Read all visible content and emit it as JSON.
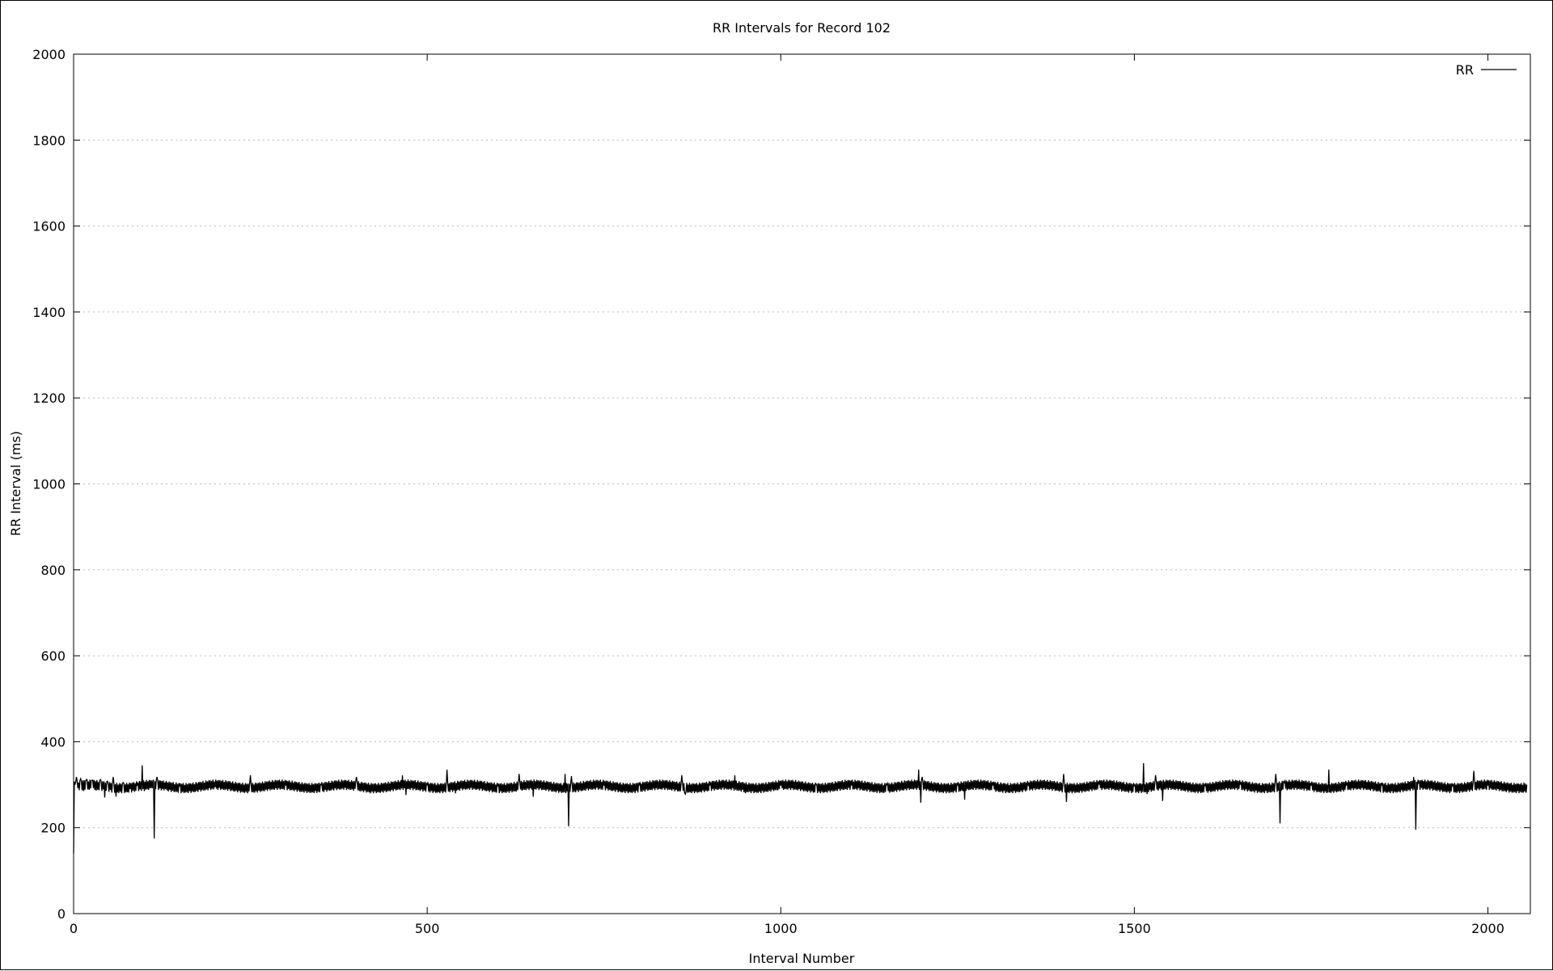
{
  "chart_data": {
    "type": "line",
    "title": "RR Intervals for Record 102",
    "xlabel": "Interval Number",
    "ylabel": "RR Interval (ms)",
    "xlim": [
      0,
      2060
    ],
    "ylim": [
      0,
      2000
    ],
    "xticks": [
      0,
      500,
      1000,
      1500,
      2000
    ],
    "yticks": [
      0,
      200,
      400,
      600,
      800,
      1000,
      1200,
      1400,
      1600,
      1800,
      2000
    ],
    "grid": true,
    "legend_position": "top-right",
    "series": [
      {
        "name": "RR",
        "color": "#000000",
        "baseline": 296,
        "oscillation_amplitude": 12,
        "points": [
          [
            0,
            140
          ],
          [
            2,
            300
          ],
          [
            4,
            318
          ],
          [
            6,
            292
          ],
          [
            10,
            314
          ],
          [
            14,
            285
          ],
          [
            18,
            312
          ],
          [
            22,
            288
          ],
          [
            26,
            310
          ],
          [
            32,
            286
          ],
          [
            38,
            312
          ],
          [
            44,
            270
          ],
          [
            48,
            308
          ],
          [
            52,
            288
          ],
          [
            56,
            318
          ],
          [
            60,
            272
          ],
          [
            70,
            305
          ],
          [
            80,
            290
          ],
          [
            90,
            300
          ],
          [
            97,
            345
          ],
          [
            100,
            285
          ],
          [
            110,
            292
          ],
          [
            114,
            175
          ],
          [
            118,
            318
          ],
          [
            130,
            290
          ],
          [
            150,
            296
          ],
          [
            200,
            294
          ],
          [
            250,
            322
          ],
          [
            300,
            298
          ],
          [
            350,
            300
          ],
          [
            400,
            318
          ],
          [
            420,
            280
          ],
          [
            465,
            322
          ],
          [
            470,
            276
          ],
          [
            500,
            300
          ],
          [
            528,
            335
          ],
          [
            540,
            280
          ],
          [
            600,
            298
          ],
          [
            630,
            325
          ],
          [
            650,
            272
          ],
          [
            695,
            325
          ],
          [
            700,
            203
          ],
          [
            704,
            320
          ],
          [
            750,
            298
          ],
          [
            800,
            300
          ],
          [
            860,
            322
          ],
          [
            865,
            278
          ],
          [
            900,
            298
          ],
          [
            935,
            322
          ],
          [
            950,
            280
          ],
          [
            1000,
            298
          ],
          [
            1050,
            300
          ],
          [
            1100,
            298
          ],
          [
            1150,
            300
          ],
          [
            1195,
            335
          ],
          [
            1198,
            258
          ],
          [
            1200,
            318
          ],
          [
            1250,
            300
          ],
          [
            1260,
            265
          ],
          [
            1300,
            298
          ],
          [
            1350,
            300
          ],
          [
            1400,
            325
          ],
          [
            1404,
            260
          ],
          [
            1450,
            300
          ],
          [
            1500,
            298
          ],
          [
            1513,
            350
          ],
          [
            1518,
            278
          ],
          [
            1530,
            322
          ],
          [
            1540,
            262
          ],
          [
            1600,
            298
          ],
          [
            1650,
            300
          ],
          [
            1700,
            325
          ],
          [
            1706,
            210
          ],
          [
            1712,
            305
          ],
          [
            1750,
            298
          ],
          [
            1775,
            335
          ],
          [
            1800,
            298
          ],
          [
            1850,
            300
          ],
          [
            1895,
            318
          ],
          [
            1898,
            195
          ],
          [
            1902,
            305
          ],
          [
            1950,
            298
          ],
          [
            1980,
            332
          ],
          [
            2000,
            298
          ],
          [
            2055,
            300
          ]
        ]
      }
    ]
  }
}
